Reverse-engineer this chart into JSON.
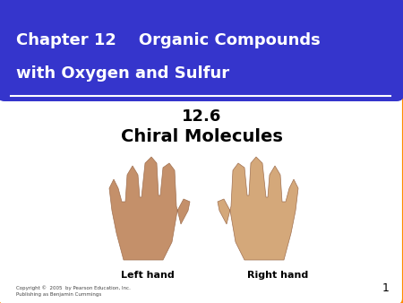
{
  "title_line1": "Chapter 12    Organic Compounds",
  "title_line2": "with Oxygen and Sulfur",
  "subtitle1": "12.6",
  "subtitle2": "Chiral Molecules",
  "left_label": "Left hand",
  "right_label": "Right hand",
  "copyright": "Copyright ©  2005  by Pearson Education, Inc.\nPublishing as Benjamin Cummings",
  "page_number": "1",
  "header_bg_color": "#3535cc",
  "header_text_color": "#ffffff",
  "slide_bg_color": "#ffffff",
  "outer_bg_color": "#f0f0f0",
  "border_color": "#ff8c00",
  "hand_color_left": "#c4906a",
  "hand_color_right": "#d4a87a"
}
